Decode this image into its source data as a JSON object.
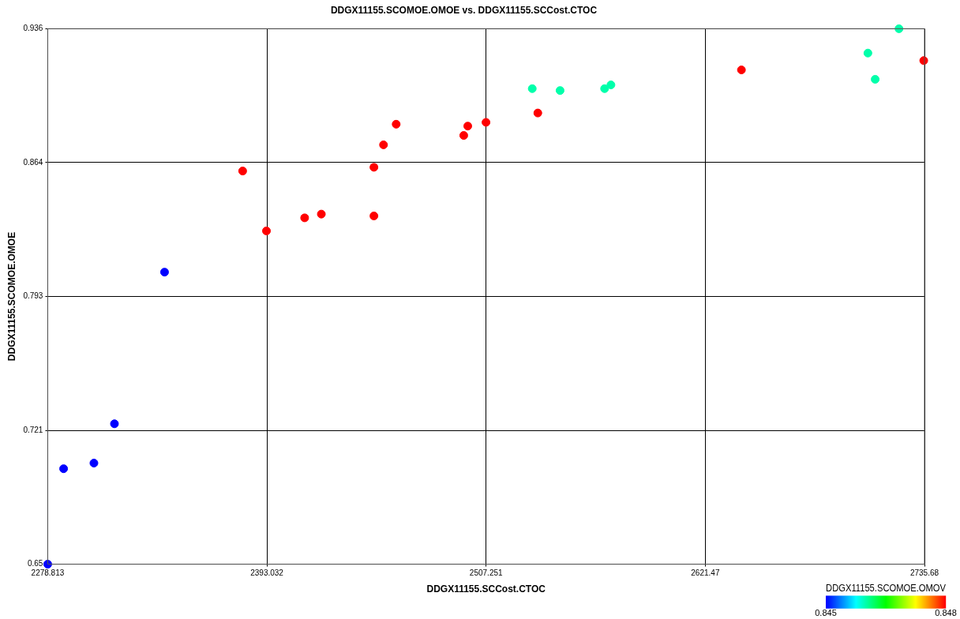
{
  "chart_data": {
    "type": "scatter",
    "title": "DDGX11155.SCOMOE.OMOE vs. DDGX11155.SCCost.CTOC",
    "xlabel": "DDGX11155.SCCost.CTOC",
    "ylabel": "DDGX11155.SCOMOE.OMOE",
    "clabel": "DDGX11155.SCOMOE.OMOV",
    "x": [
      2278.813,
      2287.1,
      2302.9,
      2313.6,
      2339.7,
      2380.4,
      2392.8,
      2412.7,
      2421.4,
      2448.8,
      2448.8,
      2453.8,
      2460.4,
      2495.6,
      2497.7,
      2507.2,
      2534.2,
      2640.3,
      2735.3,
      2531.3,
      2545.8,
      2569.0,
      2572.3,
      2706.2,
      2710.0,
      2722.4
    ],
    "values": [
      0.65,
      0.701,
      0.704,
      0.725,
      0.806,
      0.86,
      0.828,
      0.835,
      0.837,
      0.836,
      0.862,
      0.874,
      0.885,
      0.879,
      0.884,
      0.886,
      0.891,
      0.914,
      0.919,
      0.904,
      0.903,
      0.904,
      0.906,
      0.923,
      0.909,
      0.936
    ],
    "cvalues": [
      0.845,
      0.845,
      0.845,
      0.845,
      0.845,
      0.848,
      0.848,
      0.848,
      0.848,
      0.848,
      0.848,
      0.848,
      0.848,
      0.848,
      0.848,
      0.848,
      0.848,
      0.848,
      0.848,
      0.846,
      0.846,
      0.846,
      0.846,
      0.846,
      0.846,
      0.846
    ],
    "clim": [
      0.845,
      0.848
    ],
    "cticks": [
      0.845,
      0.848
    ],
    "xlim": [
      2278.813,
      2735.68
    ],
    "xticks": [
      2278.813,
      2393.032,
      2507.251,
      2621.47,
      2735.68
    ],
    "ylim": [
      0.65,
      0.936
    ],
    "yticks": [
      0.65,
      {
        "value": 0.7215,
        "label": "0.721"
      },
      0.793,
      {
        "value": 0.8645,
        "label": "0.864"
      },
      0.936
    ],
    "grid": true,
    "marker": "circle",
    "legend": false
  }
}
